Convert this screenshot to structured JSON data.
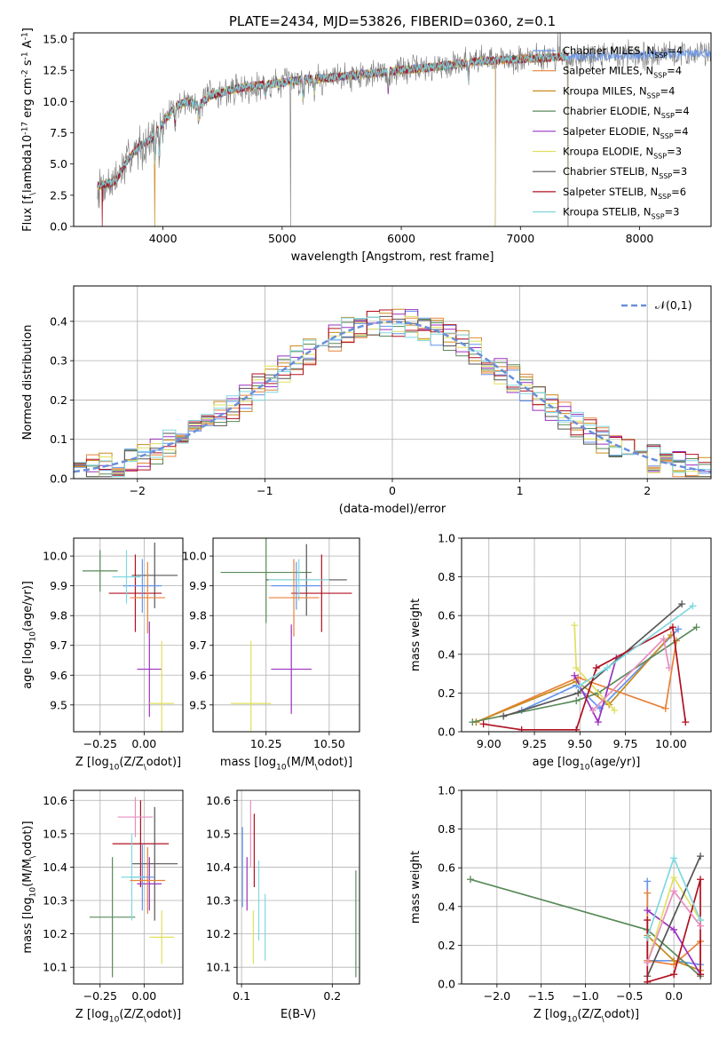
{
  "figure_title": "PLATE=2434, MJD=53826, FIBERID=0360, z=0.1",
  "colors": {
    "Chabrier MILES": "#6495ed",
    "Salpeter MILES": "#e8823a",
    "Kroupa MILES": "#c98b1f",
    "Chabrier ELODIE": "#5a8a5a",
    "Salpeter ELODIE": "#9a30c0",
    "Kroupa ELODIE": "#e0e060",
    "Chabrier STELIB": "#555555",
    "Salpeter STELIB": "#b01020",
    "Kroupa STELIB": "#80d8e0",
    "normal_curve": "#6a8fd8"
  },
  "chart_data": [
    {
      "id": "spectrum",
      "type": "line",
      "xlabel": "wavelength [Angstrom, rest frame]",
      "ylabel": "Flux [f$_\\lambda$10$^{-17}$ erg cm$^{-2}$ s$^{-1}$ A$^{-1}$]",
      "xlim": [
        3250,
        8600
      ],
      "ylim": [
        0,
        15.5
      ],
      "xticks": [
        4000,
        5000,
        6000,
        7000,
        8000
      ],
      "yticks": [
        0.0,
        2.5,
        5.0,
        7.5,
        10.0,
        12.5,
        15.0
      ],
      "grid": false,
      "legend": "upper right",
      "data_range": [
        3450,
        8600
      ],
      "continuum": [
        [
          3450,
          3.2
        ],
        [
          3600,
          3.6
        ],
        [
          3700,
          5.3
        ],
        [
          3800,
          6.4
        ],
        [
          3900,
          7.0
        ],
        [
          4000,
          8.3
        ],
        [
          4100,
          9.6
        ],
        [
          4200,
          10.0
        ],
        [
          4300,
          9.7
        ],
        [
          4400,
          10.5
        ],
        [
          4600,
          11.0
        ],
        [
          4800,
          11.3
        ],
        [
          5000,
          11.5
        ],
        [
          5200,
          11.8
        ],
        [
          5400,
          11.9
        ],
        [
          5600,
          12.1
        ],
        [
          5800,
          12.3
        ],
        [
          6000,
          12.5
        ],
        [
          6200,
          12.7
        ],
        [
          6400,
          12.9
        ],
        [
          6600,
          13.2
        ],
        [
          6800,
          13.3
        ],
        [
          7000,
          13.4
        ],
        [
          7200,
          13.5
        ],
        [
          7400,
          13.6
        ],
        [
          7600,
          13.6
        ],
        [
          7800,
          13.7
        ],
        [
          8000,
          13.7
        ],
        [
          8200,
          13.8
        ],
        [
          8400,
          13.8
        ],
        [
          8600,
          13.9
        ]
      ],
      "absorption_features": [
        [
          3934,
          5.2
        ],
        [
          3969,
          5.5
        ],
        [
          4102,
          8.3
        ],
        [
          4300,
          8.6
        ],
        [
          4861,
          10.4
        ],
        [
          5175,
          10.3
        ],
        [
          5270,
          10.8
        ],
        [
          5890,
          10.9
        ],
        [
          6563,
          11.9
        ]
      ],
      "dropouts": [
        [
          3490,
          "Salpeter STELIB"
        ],
        [
          3930,
          "Kroupa MILES"
        ],
        [
          5070,
          "observed"
        ],
        [
          6790,
          "Kroupa ELODIE"
        ],
        [
          7400,
          "Salpeter MILES"
        ]
      ],
      "series": [
        {
          "name": "Chabrier MILES, N$_{SSP}$=4",
          "model": "Chabrier MILES",
          "end": 8600
        },
        {
          "name": "Salpeter MILES, N$_{SSP}$=4",
          "model": "Salpeter MILES",
          "end": 7400
        },
        {
          "name": "Kroupa MILES, N$_{SSP}$=4",
          "model": "Kroupa MILES",
          "end": 7400
        },
        {
          "name": "Chabrier ELODIE, N$_{SSP}$=4",
          "model": "Chabrier ELODIE",
          "end": 6790
        },
        {
          "name": "Salpeter ELODIE, N$_{SSP}$=4",
          "model": "Salpeter ELODIE",
          "end": 6790
        },
        {
          "name": "Kroupa ELODIE, N$_{SSP}$=3",
          "model": "Kroupa ELODIE",
          "end": 6790
        },
        {
          "name": "Chabrier STELIB, N$_{SSP}$=3",
          "model": "Chabrier STELIB",
          "end": 7400
        },
        {
          "name": "Salpeter STELIB, N$_{SSP}$=6",
          "model": "Salpeter STELIB",
          "end": 7400
        },
        {
          "name": "Kroupa STELIB, N$_{SSP}$=3",
          "model": "Kroupa STELIB",
          "end": 7400
        }
      ]
    },
    {
      "id": "residuals",
      "type": "step",
      "xlabel": "(data-model)/error",
      "ylabel": "Normed distribution",
      "xlim": [
        -2.5,
        2.5
      ],
      "ylim": [
        0,
        0.49
      ],
      "xticks": [
        -2,
        -1,
        0,
        1,
        2
      ],
      "yticks": [
        0.0,
        0.1,
        0.2,
        0.3,
        0.4
      ],
      "grid": true,
      "legend": "upper right",
      "legend_label": "$\\mathcal{N}(0,1)$",
      "bin_edges_from": -2.5,
      "bin_width": 0.1,
      "bins": 50
    },
    {
      "id": "age_vs_Z",
      "type": "errorbar",
      "xlabel": "Z [log$_{10}$(Z/Z$_\\odot$)]",
      "ylabel": "age  [log$_{10}$(age/yr)]",
      "xlim": [
        -0.4,
        0.22
      ],
      "ylim": [
        9.41,
        10.06
      ],
      "xticks": [
        -0.25,
        0.0
      ],
      "yticks": [
        9.5,
        9.6,
        9.7,
        9.8,
        9.9,
        10.0
      ],
      "grid": true,
      "points": [
        {
          "model": "Chabrier ELODIE",
          "x": -0.25,
          "xerr": 0.1,
          "y": 9.95,
          "yerr": 0.07
        },
        {
          "model": "Chabrier STELIB",
          "x": 0.06,
          "xerr": 0.13,
          "y": 9.935,
          "yerr": 0.11
        },
        {
          "model": "Salpeter STELIB",
          "x": -0.05,
          "xerr": 0.15,
          "y": 9.875,
          "yerr": 0.13
        },
        {
          "model": "Chabrier MILES",
          "x": -0.01,
          "xerr": 0.11,
          "y": 9.9,
          "yerr": 0.09
        },
        {
          "model": "Kroupa STELIB",
          "x": -0.1,
          "xerr": 0.08,
          "y": 9.93,
          "yerr": 0.09
        },
        {
          "model": "Salpeter MILES",
          "x": 0.02,
          "xerr": 0.1,
          "y": 9.86,
          "yerr": 0.12
        },
        {
          "model": "Salpeter ELODIE",
          "x": 0.03,
          "xerr": 0.07,
          "y": 9.62,
          "yerr": 0.16
        },
        {
          "model": "Kroupa ELODIE",
          "x": 0.1,
          "xerr": 0.07,
          "y": 9.505,
          "yerr": 0.21
        }
      ]
    },
    {
      "id": "age_vs_mass",
      "type": "errorbar",
      "xlabel": "mass [log$_{10}$(M/M$_\\odot$)]",
      "ylabel": "",
      "xlim": [
        10.04,
        10.62
      ],
      "ylim": [
        9.41,
        10.06
      ],
      "xticks": [
        10.25,
        10.5
      ],
      "yticks": [
        9.5,
        9.6,
        9.7,
        9.8,
        9.9,
        10.0
      ],
      "grid": true,
      "points": [
        {
          "model": "Chabrier ELODIE",
          "x": 10.25,
          "xerr": 0.18,
          "y": 9.945,
          "yerr": 0.17
        },
        {
          "model": "Chabrier STELIB",
          "x": 10.41,
          "xerr": 0.16,
          "y": 9.92,
          "yerr": 0.12
        },
        {
          "model": "Salpeter STELIB",
          "x": 10.47,
          "xerr": 0.12,
          "y": 9.875,
          "yerr": 0.13
        },
        {
          "model": "Chabrier MILES",
          "x": 10.37,
          "xerr": 0.1,
          "y": 9.9,
          "yerr": 0.08
        },
        {
          "model": "Kroupa STELIB",
          "x": 10.38,
          "xerr": 0.12,
          "y": 9.92,
          "yerr": 0.07
        },
        {
          "model": "Salpeter MILES",
          "x": 10.36,
          "xerr": 0.1,
          "y": 9.86,
          "yerr": 0.13
        },
        {
          "model": "Salpeter ELODIE",
          "x": 10.35,
          "xerr": 0.08,
          "y": 9.62,
          "yerr": 0.15
        },
        {
          "model": "Kroupa ELODIE",
          "x": 10.19,
          "xerr": 0.08,
          "y": 9.505,
          "yerr": 0.21
        }
      ]
    },
    {
      "id": "weight_vs_age",
      "type": "line",
      "xlabel": "age  [log$_{10}$(age/yr)]",
      "ylabel": "mass weight",
      "xlim": [
        8.85,
        10.22
      ],
      "ylim": [
        0,
        1
      ],
      "xticks": [
        9.0,
        9.25,
        9.5,
        9.75,
        10.0
      ],
      "yticks": [
        0.0,
        0.2,
        0.4,
        0.6,
        0.8,
        1.0
      ],
      "grid": true,
      "series": [
        {
          "model": "Chabrier MILES",
          "x": [
            9.18,
            9.48,
            9.61,
            10.04
          ],
          "y": [
            0.11,
            0.24,
            0.12,
            0.53
          ]
        },
        {
          "model": "Salpeter MILES",
          "x": [
            8.93,
            9.49,
            9.97,
            10.03
          ],
          "y": [
            0.05,
            0.28,
            0.12,
            0.47
          ]
        },
        {
          "model": "Kroupa MILES",
          "x": [
            8.93,
            9.48,
            9.66,
            10.0
          ],
          "y": [
            0.05,
            0.26,
            0.14,
            0.5
          ]
        },
        {
          "model": "Chabrier ELODIE",
          "x": [
            8.91,
            9.48,
            9.6,
            10.14
          ],
          "y": [
            0.05,
            0.16,
            0.2,
            0.54
          ]
        },
        {
          "model": "Salpeter ELODIE",
          "x": [
            9.47,
            9.6,
            9.7
          ],
          "y": [
            0.29,
            0.05,
            0.38
          ]
        },
        {
          "model": "Kroupa ELODIE",
          "x": [
            9.47,
            9.48,
            9.69
          ],
          "y": [
            0.55,
            0.33,
            0.11
          ]
        },
        {
          "model": "Chabrier STELIB",
          "x": [
            9.08,
            9.49,
            10.06
          ],
          "y": [
            0.08,
            0.2,
            0.66
          ]
        },
        {
          "model": "Salpeter STELIB",
          "x": [
            8.97,
            9.18,
            9.48,
            9.59,
            10.01,
            10.08
          ],
          "y": [
            0.04,
            0.01,
            0.01,
            0.33,
            0.54,
            0.05
          ]
        },
        {
          "model": "Kroupa STELIB",
          "x": [
            9.5,
            9.65,
            10.12
          ],
          "y": [
            0.24,
            0.33,
            0.65
          ]
        },
        {
          "model": "extra",
          "color": "#e88cc0",
          "x": [
            9.57,
            9.96,
            9.99
          ],
          "y": [
            0.11,
            0.48,
            0.33
          ]
        }
      ]
    },
    {
      "id": "mass_vs_Z",
      "type": "errorbar",
      "xlabel": "Z [log$_{10}$(Z/Z$_\\odot$)]",
      "ylabel": "mass [log$_{10}$(M/M$_\\odot$)]",
      "xlim": [
        -0.4,
        0.22
      ],
      "ylim": [
        10.05,
        10.63
      ],
      "xticks": [
        -0.25,
        0.0
      ],
      "yticks": [
        10.1,
        10.2,
        10.3,
        10.4,
        10.5,
        10.6
      ],
      "grid": true,
      "points": [
        {
          "model": "Chabrier ELODIE",
          "x": -0.18,
          "xerr": 0.13,
          "y": 10.25,
          "yerr": 0.18
        },
        {
          "model": "Kroupa ELODIE",
          "x": 0.1,
          "xerr": 0.07,
          "y": 10.19,
          "yerr": 0.08
        },
        {
          "model": "Salpeter STELIB",
          "x": -0.02,
          "xerr": 0.16,
          "y": 10.47,
          "yerr": 0.13
        },
        {
          "model": "Chabrier STELIB",
          "x": 0.06,
          "xerr": 0.13,
          "y": 10.41,
          "yerr": 0.17
        },
        {
          "model": "Salpeter ELODIE",
          "x": 0.03,
          "xerr": 0.07,
          "y": 10.35,
          "yerr": 0.08
        },
        {
          "model": "Chabrier MILES",
          "x": -0.01,
          "xerr": 0.07,
          "y": 10.37,
          "yerr": 0.1
        },
        {
          "model": "Kroupa STELIB",
          "x": -0.07,
          "xerr": 0.06,
          "y": 10.37,
          "yerr": 0.13
        },
        {
          "model": "Salpeter MILES",
          "x": 0.02,
          "xerr": 0.1,
          "y": 10.36,
          "yerr": 0.1
        },
        {
          "model": "extra",
          "color": "#e88cc0",
          "x": -0.05,
          "xerr": 0.1,
          "y": 10.55,
          "yerr": 0.06
        }
      ]
    },
    {
      "id": "mass_vs_ebv",
      "type": "errorbar",
      "xlabel": "E(B-V)",
      "ylabel": "",
      "xlim": [
        0.095,
        0.23
      ],
      "ylim": [
        10.05,
        10.63
      ],
      "xticks": [
        0.1,
        0.2
      ],
      "yticks": [
        10.1,
        10.2,
        10.3,
        10.4,
        10.5,
        10.6
      ],
      "grid": true,
      "points": [
        {
          "model": "Chabrier MILES",
          "x": 0.101,
          "y": 10.4,
          "yerr": 0.12
        },
        {
          "model": "Salpeter ELODIE",
          "x": 0.106,
          "y": 10.35,
          "yerr": 0.08
        },
        {
          "model": "Kroupa ELODIE",
          "x": 0.113,
          "y": 10.19,
          "yerr": 0.08
        },
        {
          "model": "extra",
          "color": "#e88cc0",
          "x": 0.11,
          "y": 10.5,
          "yerr": 0.1
        },
        {
          "model": "Salpeter STELIB",
          "x": 0.114,
          "y": 10.45,
          "yerr": 0.11
        },
        {
          "model": "Kroupa STELIB",
          "x": 0.119,
          "y": 10.3,
          "yerr": 0.12
        },
        {
          "model": "Kroupa STELIB",
          "x": 0.126,
          "y": 10.22,
          "yerr": 0.1
        },
        {
          "model": "Chabrier ELODIE",
          "x": 0.226,
          "y": 10.23,
          "yerr": 0.16
        }
      ]
    },
    {
      "id": "weight_vs_Z",
      "type": "line",
      "xlabel": "Z [log$_{10}$(Z/Z$_\\odot$)]",
      "ylabel": "mass weight",
      "xlim": [
        -2.4,
        0.42
      ],
      "ylim": [
        0,
        1
      ],
      "xticks": [
        -2.0,
        -1.5,
        -1.0,
        -0.5,
        0.0
      ],
      "yticks": [
        0.0,
        0.2,
        0.4,
        0.6,
        0.8,
        1.0
      ],
      "grid": true,
      "series": [
        {
          "model": "Chabrier MILES",
          "x": [
            -0.3,
            -0.3,
            0.0,
            0.3
          ],
          "y": [
            0.53,
            0.12,
            0.12,
            0.1
          ]
        },
        {
          "model": "Salpeter MILES",
          "x": [
            -0.3,
            -0.3,
            0.0,
            0.3,
            0.3
          ],
          "y": [
            0.47,
            0.12,
            0.1,
            0.22,
            0.05
          ]
        },
        {
          "model": "Kroupa MILES",
          "x": [
            -0.3,
            0.0,
            0.3
          ],
          "y": [
            0.25,
            0.12,
            0.07
          ]
        },
        {
          "model": "Chabrier ELODIE",
          "x": [
            -2.3,
            -0.3,
            0.3
          ],
          "y": [
            0.54,
            0.28,
            0.04
          ]
        },
        {
          "model": "Salpeter ELODIE",
          "x": [
            -0.3,
            0.0,
            0.3
          ],
          "y": [
            0.38,
            0.28,
            0.05
          ]
        },
        {
          "model": "Kroupa ELODIE",
          "x": [
            -0.3,
            0.0,
            0.3
          ],
          "y": [
            0.11,
            0.55,
            0.33
          ]
        },
        {
          "model": "Chabrier STELIB",
          "x": [
            -0.3,
            0.3
          ],
          "y": [
            0.04,
            0.66
          ]
        },
        {
          "model": "Salpeter STELIB",
          "x": [
            -0.3,
            -0.3,
            0.0,
            0.0,
            0.3,
            0.3
          ],
          "y": [
            0.33,
            0.01,
            0.05,
            0.05,
            0.54,
            0.05
          ]
        },
        {
          "model": "Kroupa STELIB",
          "x": [
            -0.3,
            0.0,
            0.3
          ],
          "y": [
            0.24,
            0.65,
            0.33
          ]
        },
        {
          "model": "extra",
          "color": "#e88cc0",
          "x": [
            -0.3,
            0.0,
            0.3
          ],
          "y": [
            0.11,
            0.48,
            0.3
          ]
        }
      ]
    }
  ]
}
